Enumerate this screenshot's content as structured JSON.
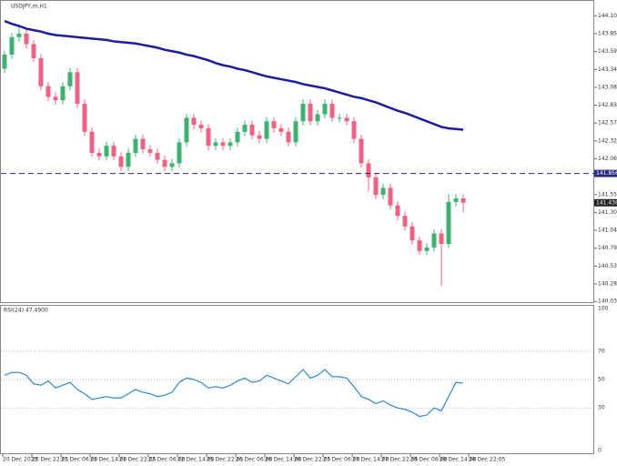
{
  "chart_data": {
    "type": "candlestick",
    "title": "USDJPY,m,H1",
    "ylim": [
      140.02,
      144.33
    ],
    "yticks": [
      144.105,
      {
        "value": 143.85,
        "label": "143.850"
      },
      143.595,
      {
        "value": 143.34,
        "label": "143.340"
      },
      143.085,
      {
        "value": 142.83,
        "label": "142.830"
      },
      142.575,
      {
        "value": 142.32,
        "label": "142.320"
      },
      142.065,
      141.555,
      {
        "value": 141.3,
        "label": "141.300"
      },
      141.045,
      {
        "value": 140.79,
        "label": "140.790"
      },
      140.535,
      {
        "value": 140.28,
        "label": "140.280"
      },
      {
        "value": 140.03,
        "label": "140.030"
      }
    ],
    "x_labels": [
      "20 Dec 2023",
      "20 Dec 22:05",
      "21 Dec 06:00",
      "21 Dec 14:00",
      "21 Dec 22:05",
      "22 Dec 06:00",
      "22 Dec 14:00",
      "25 Dec 22:05",
      "26 Dec 06:00",
      "26 Dec 14:00",
      "26 Dec 22:05",
      "27 Dec 06:00",
      "27 Dec 14:00",
      "27 Dec 22:05",
      "28 Dec 06:00",
      "28 Dec 14:00",
      "28 Dec 22:05"
    ],
    "up_color": "#3cb371",
    "down_color": "#f06080",
    "open": [
      143.35,
      143.55,
      143.8,
      143.85,
      143.7,
      143.5,
      143.1,
      142.95,
      142.9,
      143.1,
      143.3,
      142.85,
      142.45,
      142.15,
      142.1,
      142.25,
      142.1,
      141.95,
      142.15,
      142.35,
      142.2,
      142.15,
      142.05,
      141.95,
      142,
      142.3,
      142.65,
      142.55,
      142.5,
      142.25,
      142.3,
      142.25,
      142.3,
      142.45,
      142.55,
      142.4,
      142.35,
      142.6,
      142.5,
      142.45,
      142.3,
      142.6,
      142.85,
      142.6,
      142.7,
      142.85,
      142.65,
      142.65,
      142.6,
      142.35,
      142,
      141.8,
      141.55,
      141.65,
      141.4,
      141.25,
      141.1,
      140.9,
      140.75,
      140.8,
      141,
      140.85,
      141.45,
      141.5
    ],
    "high": [
      143.61,
      143.86,
      143.95,
      143.91,
      143.76,
      143.56,
      143.16,
      143.01,
      143.16,
      143.36,
      143.36,
      142.91,
      142.51,
      142.21,
      142.31,
      142.31,
      142.16,
      142.21,
      142.41,
      142.41,
      142.26,
      142.21,
      142.11,
      142.06,
      142.36,
      142.71,
      142.71,
      142.61,
      142.56,
      142.36,
      142.36,
      142.36,
      142.51,
      142.61,
      142.61,
      142.46,
      142.66,
      142.66,
      142.56,
      142.51,
      142.66,
      142.91,
      142.91,
      142.76,
      142.91,
      142.91,
      142.71,
      142.71,
      142.66,
      142.41,
      142.06,
      141.86,
      141.71,
      141.71,
      141.46,
      141.31,
      141.16,
      140.96,
      140.86,
      141.06,
      141.06,
      141.56,
      141.56,
      141.56
    ],
    "low": [
      143.29,
      143.49,
      143.74,
      143.64,
      143.44,
      143.04,
      142.89,
      142.84,
      142.84,
      143.04,
      142.79,
      142.39,
      142.09,
      142.04,
      142.04,
      142.04,
      141.89,
      141.89,
      142.09,
      142.14,
      142.09,
      141.99,
      141.89,
      141.89,
      141.94,
      142.24,
      142.49,
      142.44,
      142.19,
      142.19,
      142.19,
      142.19,
      142.24,
      142.39,
      142.34,
      142.29,
      142.29,
      142.44,
      142.39,
      142.24,
      142.24,
      142.54,
      142.54,
      142.54,
      142.64,
      142.59,
      142.59,
      142.54,
      142.29,
      141.94,
      141.6,
      141.49,
      141.49,
      141.34,
      141.19,
      141.04,
      140.84,
      140.69,
      140.69,
      140.74,
      140.25,
      140.79,
      141.39,
      141.3
    ],
    "close": [
      143.55,
      143.8,
      143.85,
      143.7,
      143.5,
      143.1,
      142.95,
      142.9,
      143.1,
      143.3,
      142.85,
      142.45,
      142.15,
      142.1,
      142.25,
      142.1,
      141.95,
      142.15,
      142.35,
      142.2,
      142.15,
      142.05,
      141.95,
      142,
      142.3,
      142.65,
      142.55,
      142.5,
      142.25,
      142.3,
      142.25,
      142.3,
      142.45,
      142.55,
      142.4,
      142.35,
      142.6,
      142.5,
      142.45,
      142.3,
      142.6,
      142.85,
      142.6,
      142.7,
      142.85,
      142.65,
      142.65,
      142.6,
      142.35,
      142,
      141.8,
      141.55,
      141.65,
      141.4,
      141.25,
      141.1,
      140.9,
      140.75,
      140.8,
      141,
      140.85,
      141.45,
      141.5,
      141.438
    ],
    "ma": {
      "color": "#1c1c9c",
      "values": [
        144.03,
        143.99,
        143.96,
        143.92,
        143.9,
        143.88,
        143.85,
        143.83,
        143.82,
        143.81,
        143.8,
        143.79,
        143.78,
        143.77,
        143.76,
        143.74,
        143.73,
        143.72,
        143.71,
        143.69,
        143.67,
        143.65,
        143.62,
        143.6,
        143.58,
        143.55,
        143.53,
        143.5,
        143.47,
        143.43,
        143.4,
        143.38,
        143.35,
        143.33,
        143.3,
        143.27,
        143.24,
        143.22,
        143.2,
        143.18,
        143.16,
        143.13,
        143.11,
        143.09,
        143.07,
        143.04,
        143.01,
        142.98,
        142.95,
        142.93,
        142.9,
        142.87,
        142.83,
        142.79,
        142.75,
        142.72,
        142.68,
        142.64,
        142.6,
        142.56,
        142.52,
        142.5,
        142.49,
        142.48
      ]
    },
    "hline": {
      "value": 141.856,
      "label": "141.856",
      "color": "#2a2a80"
    },
    "price_label": "141.438",
    "rsi": {
      "label": "RSI(24) 47.4900",
      "color": "#2a8ad6",
      "ylim": [
        0,
        100
      ],
      "yticks": [
        100,
        70,
        50,
        30,
        0
      ],
      "values": [
        53,
        55,
        55,
        53,
        47,
        46,
        49,
        44,
        46,
        48,
        43,
        40,
        36,
        37,
        38,
        37,
        37,
        40,
        43,
        41,
        40,
        38,
        39,
        41,
        48,
        51,
        50,
        48,
        44,
        45,
        44,
        46,
        49,
        51,
        48,
        49,
        53,
        51,
        49,
        47,
        52,
        57,
        51,
        53,
        57,
        52,
        52,
        51,
        45,
        38,
        36,
        33,
        35,
        32,
        30,
        29,
        27,
        24,
        25,
        30,
        28,
        38,
        48,
        47.49
      ]
    }
  }
}
